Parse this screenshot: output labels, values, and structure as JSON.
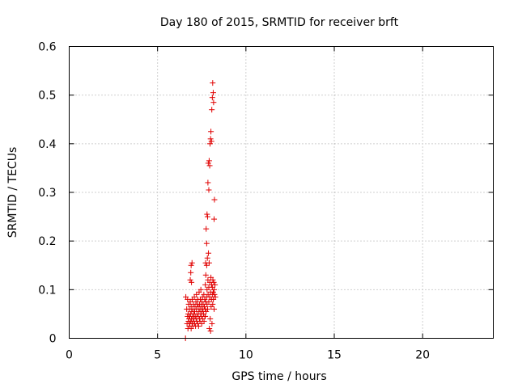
{
  "chart_data": {
    "type": "scatter",
    "title": "Day 180 of 2015, SRMTID for receiver brft",
    "xlabel": "GPS time / hours",
    "ylabel": "SRMTID / TECUs",
    "xlim": [
      0,
      24
    ],
    "ylim": [
      0,
      0.6
    ],
    "xticks": [
      0,
      5,
      10,
      15,
      20
    ],
    "yticks": [
      0,
      0.1,
      0.2,
      0.3,
      0.4,
      0.5,
      0.6
    ],
    "xtick_labels": [
      "0",
      "5",
      "10",
      "15",
      "20"
    ],
    "ytick_labels": [
      "0",
      "0.1",
      "0.2",
      "0.3",
      "0.4",
      "0.5",
      "0.6"
    ],
    "grid": true,
    "marker": "+",
    "color": "#e00000",
    "series": [
      {
        "name": "brft",
        "x": [
          6.58,
          6.6,
          6.65,
          6.67,
          6.7,
          6.7,
          6.72,
          6.73,
          6.75,
          6.76,
          6.78,
          6.8,
          6.8,
          6.82,
          6.83,
          6.85,
          6.86,
          6.88,
          6.9,
          6.9,
          6.92,
          6.93,
          6.95,
          6.96,
          6.98,
          7.0,
          7.0,
          7.02,
          7.03,
          7.05,
          7.06,
          7.08,
          7.1,
          7.1,
          7.12,
          7.13,
          7.15,
          7.17,
          7.18,
          7.2,
          7.2,
          7.22,
          7.23,
          7.25,
          7.27,
          7.28,
          7.3,
          7.3,
          7.32,
          7.34,
          7.35,
          7.37,
          7.38,
          7.4,
          7.4,
          7.42,
          7.44,
          7.45,
          7.47,
          7.48,
          7.5,
          7.5,
          7.52,
          7.54,
          7.55,
          7.57,
          7.58,
          7.6,
          7.62,
          7.63,
          7.65,
          7.67,
          7.68,
          7.7,
          7.7,
          7.72,
          7.73,
          7.75,
          7.77,
          7.78,
          7.8,
          7.8,
          7.82,
          7.83,
          7.85,
          7.86,
          7.88,
          7.9,
          7.9,
          7.92,
          7.93,
          7.95,
          7.96,
          7.98,
          8.0,
          8.0,
          8.02,
          8.03,
          8.05,
          8.06,
          8.08,
          8.1,
          8.1,
          8.12,
          8.13,
          8.15,
          8.16,
          8.18,
          8.2,
          8.2,
          8.22,
          8.25,
          8.27,
          6.85,
          6.88,
          6.9,
          6.92,
          6.95,
          7.7,
          7.72,
          7.75,
          7.78,
          7.8,
          7.83,
          7.85,
          7.87,
          7.9,
          7.92,
          7.95,
          7.97,
          8.0,
          8.02,
          8.05,
          8.07,
          8.1,
          8.12,
          8.15,
          8.17,
          8.2,
          8.22
        ],
        "y": [
          0.0,
          0.085,
          0.06,
          0.03,
          0.045,
          0.08,
          0.02,
          0.05,
          0.035,
          0.07,
          0.04,
          0.025,
          0.06,
          0.045,
          0.03,
          0.075,
          0.05,
          0.035,
          0.02,
          0.065,
          0.04,
          0.055,
          0.03,
          0.08,
          0.045,
          0.025,
          0.06,
          0.035,
          0.07,
          0.05,
          0.04,
          0.085,
          0.03,
          0.055,
          0.065,
          0.045,
          0.025,
          0.075,
          0.04,
          0.06,
          0.09,
          0.035,
          0.05,
          0.07,
          0.03,
          0.08,
          0.045,
          0.065,
          0.025,
          0.055,
          0.095,
          0.04,
          0.07,
          0.035,
          0.06,
          0.08,
          0.05,
          0.1,
          0.045,
          0.065,
          0.03,
          0.075,
          0.055,
          0.085,
          0.04,
          0.06,
          0.07,
          0.05,
          0.09,
          0.035,
          0.065,
          0.08,
          0.045,
          0.11,
          0.06,
          0.075,
          0.13,
          0.055,
          0.085,
          0.15,
          0.07,
          0.1,
          0.165,
          0.06,
          0.12,
          0.09,
          0.175,
          0.075,
          0.105,
          0.155,
          0.02,
          0.085,
          0.115,
          0.04,
          0.015,
          0.095,
          0.125,
          0.065,
          0.08,
          0.11,
          0.03,
          0.09,
          0.105,
          0.07,
          0.12,
          0.095,
          0.08,
          0.115,
          0.1,
          0.06,
          0.09,
          0.11,
          0.085,
          0.12,
          0.135,
          0.15,
          0.115,
          0.155,
          0.045,
          0.155,
          0.225,
          0.195,
          0.255,
          0.25,
          0.32,
          0.36,
          0.305,
          0.365,
          0.355,
          0.4,
          0.41,
          0.425,
          0.405,
          0.47,
          0.495,
          0.525,
          0.505,
          0.485,
          0.245,
          0.285
        ]
      }
    ]
  }
}
